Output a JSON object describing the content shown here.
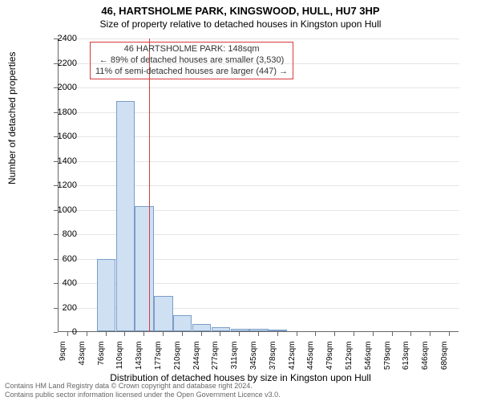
{
  "title": "46, HARTSHOLME PARK, KINGSWOOD, HULL, HU7 3HP",
  "subtitle": "Size of property relative to detached houses in Kingston upon Hull",
  "chart": {
    "type": "histogram",
    "ylabel": "Number of detached properties",
    "xlabel": "Distribution of detached houses by size in Kingston upon Hull",
    "ylim": [
      0,
      2400
    ],
    "ytick_step": 200,
    "yticks": [
      0,
      200,
      400,
      600,
      800,
      1000,
      1200,
      1400,
      1600,
      1800,
      2000,
      2200,
      2400
    ],
    "x_categories": [
      "9sqm",
      "43sqm",
      "76sqm",
      "110sqm",
      "143sqm",
      "177sqm",
      "210sqm",
      "244sqm",
      "277sqm",
      "311sqm",
      "345sqm",
      "378sqm",
      "412sqm",
      "445sqm",
      "479sqm",
      "512sqm",
      "546sqm",
      "579sqm",
      "613sqm",
      "646sqm",
      "680sqm"
    ],
    "bars": [
      0,
      0,
      590,
      1880,
      1020,
      290,
      130,
      60,
      30,
      20,
      20,
      10,
      0,
      0,
      0,
      0,
      0,
      0,
      0,
      0,
      0
    ],
    "bar_color": "#cfe0f3",
    "bar_border_color": "#7a9dc8",
    "background_color": "#ffffff",
    "grid_color": "#e5e5e5",
    "axis_color": "#666666",
    "reference_line": {
      "position_index": 4.25,
      "color": "#d83a3a"
    },
    "annotation": {
      "line1": "46 HARTSHOLME PARK: 148sqm",
      "line2": "← 89% of detached houses are smaller (3,530)",
      "line3": "11% of semi-detached houses are larger (447) →",
      "border_color": "#d83a3a",
      "text_color": "#333333"
    }
  },
  "footer": {
    "line1": "Contains HM Land Registry data © Crown copyright and database right 2024.",
    "line2": "Contains public sector information licensed under the Open Government Licence v3.0.",
    "color": "#666666"
  }
}
